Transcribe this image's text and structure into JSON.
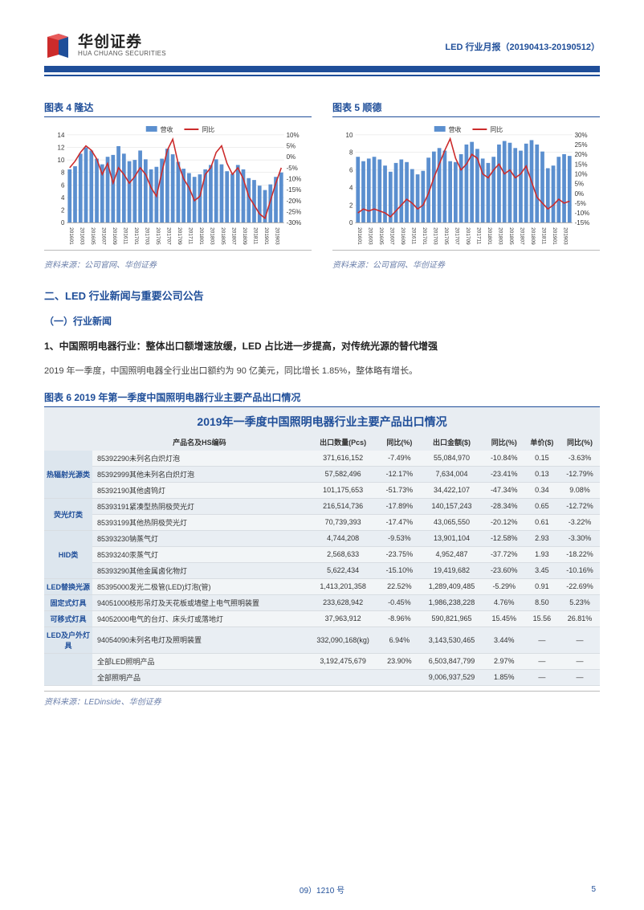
{
  "header": {
    "logo_cn": "华创证券",
    "logo_en": "HUA CHUANG SECURITIES",
    "right_text": "LED 行业月报（20190413-20190512）"
  },
  "chart4": {
    "title": "图表 4  隆达",
    "legend_bar": "营收",
    "legend_line": "同比",
    "y_left": {
      "min": 0,
      "max": 14,
      "step": 2,
      "ticks": [
        0,
        2,
        4,
        6,
        8,
        10,
        12,
        14
      ]
    },
    "y_right": {
      "min": -30,
      "max": 10,
      "step": 5,
      "ticks": [
        "10%",
        "5%",
        "0%",
        "-5%",
        "-10%",
        "-15%",
        "-20%",
        "-25%",
        "-30%"
      ]
    },
    "x_labels": [
      "201601",
      "201603",
      "201605",
      "201607",
      "201609",
      "201611",
      "201701",
      "201703",
      "201705",
      "201707",
      "201709",
      "201711",
      "201801",
      "201803",
      "201805",
      "201807",
      "201809",
      "201811",
      "201901",
      "201903"
    ],
    "bars": [
      8.5,
      9,
      11,
      12,
      11.5,
      10.2,
      9.3,
      10.5,
      10.8,
      12.2,
      11,
      9.8,
      10,
      11.5,
      10.1,
      8.5,
      8.9,
      10.2,
      11.8,
      10.9,
      9.7,
      8.6,
      7.9,
      7.3,
      7.7,
      8.5,
      9.2,
      10.1,
      9.3,
      8.2,
      7.8,
      9.2,
      8.5,
      7.1,
      6.8,
      5.9,
      5.2,
      6.1,
      7.3,
      8.0
    ],
    "line": [
      -5,
      -2,
      2,
      5,
      3,
      -1,
      -8,
      -3,
      -12,
      -5,
      -8,
      -12,
      -9,
      -5,
      -8,
      -14,
      -18,
      -7,
      3,
      8,
      -3,
      -10,
      -14,
      -20,
      -18,
      -8,
      -5,
      2,
      5,
      -3,
      -8,
      -5,
      -10,
      -18,
      -22,
      -26,
      -28,
      -20,
      -12,
      -5
    ],
    "bar_color": "#5b8fcf",
    "line_color": "#cc2b2b",
    "source": "资料来源：公司官网、华创证券"
  },
  "chart5": {
    "title": "图表 5  顺德",
    "legend_bar": "营收",
    "legend_line": "同比",
    "y_left": {
      "min": 0,
      "max": 10,
      "step": 2,
      "ticks": [
        0,
        2,
        4,
        6,
        8,
        10
      ]
    },
    "y_right": {
      "min": -15,
      "max": 30,
      "step": 5,
      "ticks": [
        "30%",
        "25%",
        "20%",
        "15%",
        "10%",
        "5%",
        "0%",
        "-5%",
        "-10%",
        "-15%"
      ]
    },
    "x_labels": [
      "201601",
      "201603",
      "201605",
      "201607",
      "201609",
      "201611",
      "201701",
      "201703",
      "201705",
      "201707",
      "201709",
      "201711",
      "201801",
      "201803",
      "201805",
      "201807",
      "201809",
      "201811",
      "201901",
      "201903"
    ],
    "bars": [
      7.5,
      7,
      7.3,
      7.5,
      7.2,
      6.5,
      5.8,
      6.8,
      7.2,
      6.9,
      6.1,
      5.5,
      5.9,
      7.4,
      8.1,
      8.5,
      8.2,
      7.0,
      6.9,
      7.8,
      8.9,
      9.2,
      8.4,
      7.3,
      6.8,
      7.5,
      8.9,
      9.3,
      9.1,
      8.5,
      8.2,
      9.0,
      9.4,
      8.9,
      8.1,
      6.2,
      6.5,
      7.5,
      7.8,
      7.6
    ],
    "line": [
      -10,
      -8,
      -9,
      -8,
      -9,
      -10,
      -12,
      -9,
      -6,
      -3,
      -5,
      -8,
      -6,
      0,
      8,
      15,
      22,
      28,
      18,
      12,
      15,
      20,
      18,
      10,
      8,
      12,
      15,
      10,
      12,
      8,
      10,
      14,
      6,
      -2,
      -5,
      -8,
      -6,
      -3,
      -5,
      -4
    ],
    "bar_color": "#5b8fcf",
    "line_color": "#cc2b2b",
    "source": "资料来源：公司官网、华创证券"
  },
  "section2": {
    "h2": "二、LED 行业新闻与重要公司公告",
    "h3": "（一）行业新闻",
    "h4": "1、中国照明电器行业：整体出口额增速放缓，LED 占比进一步提高，对传统光源的替代增强",
    "body": "2019 年一季度，中国照明电器全行业出口额约为 90 亿美元，同比增长 1.85%，整体略有增长。"
  },
  "table6": {
    "caption": "图表 6  2019 年第一季度中国照明电器行业主要产品出口情况",
    "inner_title": "2019年一季度中国照明电器行业主要产品出口情况",
    "columns": [
      "产品名及HS编码",
      "出口数量(Pcs)",
      "同比(%)",
      "出口金额($)",
      "同比(%)",
      "单价($)",
      "同比(%)"
    ],
    "row_colors": {
      "default": "#f2f5f7",
      "alt": "#e9eef3"
    },
    "cat_bg": "#dde6ee",
    "groups": [
      {
        "cat": "热辐射光源类",
        "rows": [
          [
            "85392290未列名白炽灯泡",
            "371,616,152",
            "-7.49%",
            "55,084,970",
            "-10.84%",
            "0.15",
            "-3.63%"
          ],
          [
            "85392999其他未列名白炽灯泡",
            "57,582,496",
            "-12.17%",
            "7,634,004",
            "-23.41%",
            "0.13",
            "-12.79%"
          ],
          [
            "85392190其他卤钨灯",
            "101,175,653",
            "-51.73%",
            "34,422,107",
            "-47.34%",
            "0.34",
            "9.08%"
          ]
        ]
      },
      {
        "cat": "荧光灯类",
        "rows": [
          [
            "85393191紧凑型热阴极荧光灯",
            "216,514,736",
            "-17.89%",
            "140,157,243",
            "-28.34%",
            "0.65",
            "-12.72%"
          ],
          [
            "85393199其他热阴极荧光灯",
            "70,739,393",
            "-17.47%",
            "43,065,550",
            "-20.12%",
            "0.61",
            "-3.22%"
          ]
        ]
      },
      {
        "cat": "HID类",
        "rows": [
          [
            "85393230钠蒸气灯",
            "4,744,208",
            "-9.53%",
            "13,901,104",
            "-12.58%",
            "2.93",
            "-3.30%"
          ],
          [
            "85393240汞蒸气灯",
            "2,568,633",
            "-23.75%",
            "4,952,487",
            "-37.72%",
            "1.93",
            "-18.22%"
          ],
          [
            "85393290其他金属卤化物灯",
            "5,622,434",
            "-15.10%",
            "19,419,682",
            "-23.60%",
            "3.45",
            "-10.16%"
          ]
        ]
      },
      {
        "cat": "LED替换光源",
        "rows": [
          [
            "85395000发光二极管(LED)灯泡(管)",
            "1,413,201,358",
            "22.52%",
            "1,289,409,485",
            "-5.29%",
            "0.91",
            "-22.69%"
          ]
        ]
      },
      {
        "cat": "固定式灯具",
        "rows": [
          [
            "94051000枝形吊灯及天花板或墙壁上电气照明装置",
            "233,628,942",
            "-0.45%",
            "1,986,238,228",
            "4.76%",
            "8.50",
            "5.23%"
          ]
        ]
      },
      {
        "cat": "可移式灯具",
        "rows": [
          [
            "94052000电气的台灯、床头灯或落地灯",
            "37,963,912",
            "-8.96%",
            "590,821,965",
            "15.45%",
            "15.56",
            "26.81%"
          ]
        ]
      },
      {
        "cat": "LED及户外灯具",
        "rows": [
          [
            "94054090未列名电灯及照明装置",
            "332,090,168(kg)",
            "6.94%",
            "3,143,530,465",
            "3.44%",
            "—",
            "—"
          ]
        ]
      },
      {
        "cat": "",
        "rows": [
          [
            "全部LED照明产品",
            "3,192,475,679",
            "23.90%",
            "6,503,847,799",
            "2.97%",
            "—",
            "—"
          ],
          [
            "全部照明产品",
            "",
            "",
            "9,006,937,529",
            "1.85%",
            "—",
            "—"
          ]
        ]
      }
    ],
    "source": "资料来源：LEDinside、华创证券"
  },
  "footer": {
    "center": "09）1210 号",
    "page": "5"
  }
}
